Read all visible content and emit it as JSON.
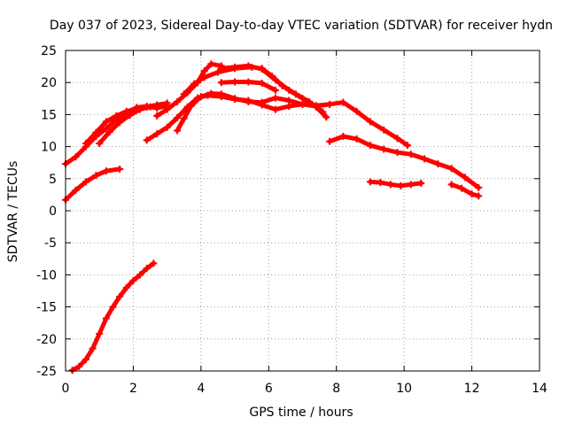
{
  "chart_data": {
    "type": "line",
    "title": "Day 037 of 2023, Sidereal Day-to-day VTEC variation (SDTVAR) for receiver hydn",
    "xlabel": "GPS time / hours",
    "ylabel": "SDTVAR / TECUs",
    "xlim": [
      0,
      14
    ],
    "ylim": [
      -25,
      25
    ],
    "xticks": [
      "0",
      "2",
      "4",
      "6",
      "8",
      "10",
      "12",
      "14"
    ],
    "yticks": [
      "25",
      "20",
      "15",
      "10",
      "5",
      "0",
      "-5",
      "-10",
      "-15",
      "-20",
      "-25"
    ],
    "grid": true,
    "color": "#ff0000",
    "series": [
      {
        "name": "arc-main-1",
        "x": [
          0.0,
          0.3,
          0.6,
          0.9,
          1.2,
          1.5,
          1.8,
          2.1,
          2.4,
          2.7,
          3.0
        ],
        "y": [
          7.3,
          8.4,
          10.0,
          11.6,
          12.8,
          14.2,
          15.3,
          16.1,
          16.3,
          16.0,
          16.4
        ]
      },
      {
        "name": "arc-main-2",
        "x": [
          0.6,
          0.9,
          1.2,
          1.5,
          1.8,
          2.1,
          2.4,
          2.7,
          3.0
        ],
        "y": [
          10.5,
          12.2,
          13.9,
          14.8,
          15.5,
          15.9,
          16.2,
          16.5,
          16.8
        ]
      },
      {
        "name": "arc-main-3",
        "x": [
          1.0,
          1.3,
          1.6,
          1.9,
          2.2,
          2.5
        ],
        "y": [
          10.5,
          12.3,
          13.8,
          14.9,
          15.8,
          16.2
        ]
      },
      {
        "name": "arc-low",
        "x": [
          0.0,
          0.3,
          0.6,
          0.9,
          1.2,
          1.6
        ],
        "y": [
          1.7,
          3.2,
          4.5,
          5.5,
          6.2,
          6.5
        ]
      },
      {
        "name": "arc-negative",
        "x": [
          0.2,
          0.4,
          0.6,
          0.8,
          1.0,
          1.2,
          1.4,
          1.6,
          1.8,
          2.0,
          2.2,
          2.4,
          2.6
        ],
        "y": [
          -24.9,
          -24.3,
          -23.2,
          -21.5,
          -19.2,
          -16.8,
          -15.0,
          -13.4,
          -12.0,
          -10.9,
          -10.0,
          -9.0,
          -8.2
        ]
      },
      {
        "name": "arc-peak-a",
        "x": [
          2.7,
          3.0,
          3.3,
          3.6,
          3.9,
          4.1,
          4.3,
          4.6
        ],
        "y": [
          14.8,
          15.8,
          17.0,
          18.4,
          20.0,
          21.8,
          22.9,
          22.6
        ]
      },
      {
        "name": "arc-peak-b",
        "x": [
          3.5,
          3.8,
          4.1,
          4.5,
          5.0,
          5.5,
          5.8,
          6.1,
          6.4,
          6.8,
          7.2,
          7.6
        ],
        "y": [
          18.2,
          19.8,
          20.8,
          21.6,
          22.2,
          22.4,
          22.2,
          21.0,
          19.5,
          18.2,
          17.0,
          15.4
        ]
      },
      {
        "name": "arc-peak-c",
        "x": [
          4.6,
          5.0,
          5.4,
          5.8,
          6.2,
          6.6,
          7.0,
          7.4,
          7.7
        ],
        "y": [
          22.2,
          22.4,
          22.6,
          22.1,
          20.4,
          18.8,
          17.5,
          16.2,
          14.6
        ]
      },
      {
        "name": "arc-mid-a",
        "x": [
          2.4,
          2.7,
          3.0,
          3.3,
          3.6,
          3.9,
          4.2,
          4.6,
          5.0,
          5.4,
          5.8,
          6.2,
          6.6,
          7.0,
          7.4,
          7.8,
          8.2,
          8.6,
          9.0,
          9.4,
          9.8,
          10.1
        ],
        "y": [
          11.0,
          12.0,
          13.0,
          14.5,
          16.2,
          17.6,
          18.0,
          17.8,
          17.4,
          17.2,
          16.5,
          15.8,
          16.3,
          16.6,
          16.4,
          16.6,
          16.9,
          15.5,
          13.9,
          12.6,
          11.3,
          10.2
        ]
      },
      {
        "name": "arc-mid-b",
        "x": [
          3.3,
          3.5,
          3.7,
          4.0,
          4.3,
          4.6,
          5.0,
          5.4,
          5.8,
          6.2,
          6.6,
          7.0,
          7.4,
          7.8
        ],
        "y": [
          12.5,
          14.4,
          16.3,
          17.8,
          18.3,
          18.2,
          17.5,
          17.0,
          16.9,
          17.6,
          17.2,
          16.6,
          16.3,
          16.6
        ]
      },
      {
        "name": "arc-plateau",
        "x": [
          4.6,
          5.0,
          5.4,
          5.8,
          6.2
        ],
        "y": [
          20.0,
          20.1,
          20.1,
          19.9,
          18.8
        ]
      },
      {
        "name": "arc-tail-a",
        "x": [
          7.8,
          8.2,
          8.6,
          9.0,
          9.4,
          9.8,
          10.2,
          10.6,
          11.0,
          11.4,
          11.8,
          12.2
        ],
        "y": [
          10.8,
          11.6,
          11.2,
          10.2,
          9.6,
          9.1,
          8.8,
          8.1,
          7.3,
          6.6,
          5.2,
          3.6
        ]
      },
      {
        "name": "arc-tail-b",
        "x": [
          9.0,
          9.3,
          9.6,
          9.9,
          10.2,
          10.5
        ],
        "y": [
          4.5,
          4.4,
          4.1,
          3.9,
          4.1,
          4.3
        ]
      },
      {
        "name": "arc-tail-c",
        "x": [
          11.4,
          11.7,
          12.0,
          12.2
        ],
        "y": [
          4.1,
          3.5,
          2.6,
          2.3
        ]
      }
    ]
  }
}
